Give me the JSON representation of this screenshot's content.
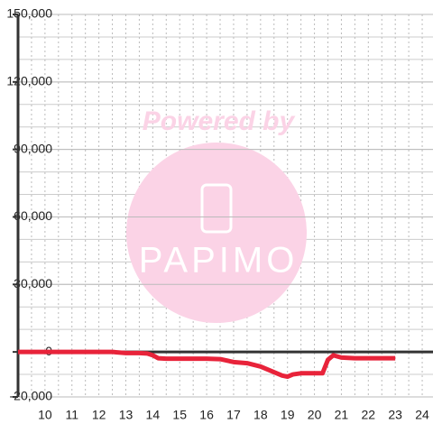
{
  "chart_data": {
    "type": "line",
    "watermark": {
      "line1": "Powered by",
      "line2": "PAPIMO"
    },
    "x": [
      9,
      10,
      11,
      12,
      12.5,
      13,
      13.5,
      13.8,
      14,
      14.2,
      14.5,
      15,
      16,
      16.5,
      17,
      17.5,
      18,
      18.5,
      18.8,
      19,
      19.2,
      19.5,
      20,
      20.3,
      20.5,
      20.7,
      21,
      21.5,
      22,
      23
    ],
    "series": [
      {
        "color": "#e8233a",
        "values": [
          0,
          0,
          0,
          0,
          0,
          -500,
          -500,
          -700,
          -1500,
          -2800,
          -3000,
          -3000,
          -3000,
          -3200,
          -4500,
          -5000,
          -6500,
          -9000,
          -10500,
          -11000,
          -10000,
          -9500,
          -9500,
          -9500,
          -3500,
          -1500,
          -2500,
          -2800,
          -2800,
          -2800
        ]
      }
    ],
    "xlim": [
      9,
      24.4
    ],
    "xticks": [
      10,
      11,
      12,
      13,
      14,
      15,
      16,
      17,
      18,
      19,
      20,
      21,
      22,
      23,
      24
    ],
    "ylim": [
      -20000,
      150000
    ],
    "yticks": [
      {
        "value": -20000,
        "label": "-20,000"
      },
      0,
      {
        "value": 30000,
        "label": "30,000"
      },
      {
        "value": 60000,
        "label": "60,000"
      },
      {
        "value": 90000,
        "label": "90,000"
      },
      {
        "value": 120000,
        "label": "120,000"
      },
      {
        "value": 150000,
        "label": "150,000"
      }
    ],
    "grid": true
  }
}
